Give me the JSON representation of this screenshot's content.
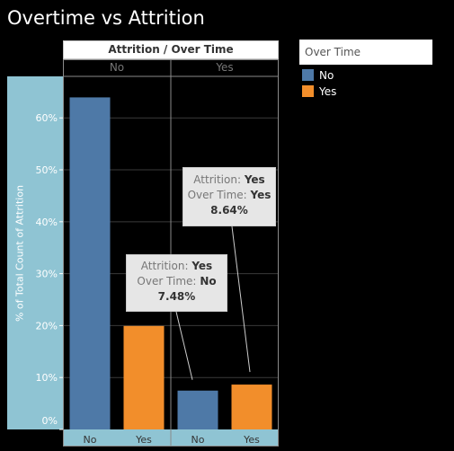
{
  "title": "Overtime vs Attrition",
  "header": "Attrition / Over Time",
  "legend": {
    "title": "Over Time",
    "items": [
      {
        "label": "No",
        "color": "#4e79a7"
      },
      {
        "label": "Yes",
        "color": "#f28e2b"
      }
    ]
  },
  "tooltips": [
    {
      "attrition_label": "Attrition:",
      "attrition_value": "Yes",
      "overtime_label": "Over Time:",
      "overtime_value": "No",
      "value_text": "7.48%"
    },
    {
      "attrition_label": "Attrition:",
      "attrition_value": "Yes",
      "overtime_label": "Over Time:",
      "overtime_value": "Yes",
      "value_text": "8.64%"
    }
  ],
  "chart_data": {
    "type": "bar",
    "title": "Overtime vs Attrition",
    "ylabel": "% of Total Count of Attrition",
    "column_header": "Attrition / Over Time",
    "panes": [
      "No",
      "Yes"
    ],
    "categories": [
      "No",
      "Yes"
    ],
    "series": [
      {
        "pane": "No",
        "values": [
          63.95,
          19.93
        ]
      },
      {
        "pane": "Yes",
        "values": [
          7.48,
          8.64
        ]
      }
    ],
    "colors": {
      "No": "#4e79a7",
      "Yes": "#f28e2b"
    },
    "ylim": [
      0,
      68
    ],
    "yticks": [
      0,
      10,
      20,
      30,
      40,
      50,
      60
    ],
    "ytick_labels": [
      "0%",
      "10%",
      "20%",
      "30%",
      "40%",
      "50%",
      "60%"
    ],
    "grid": true
  }
}
